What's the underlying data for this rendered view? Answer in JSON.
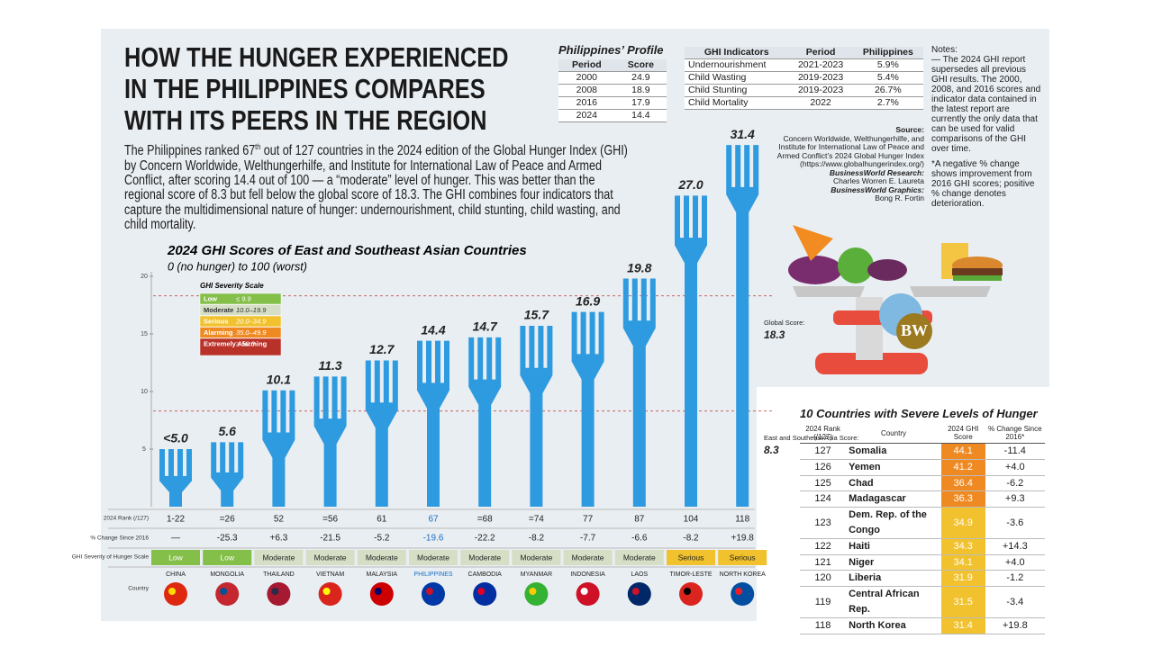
{
  "header": {
    "title_lines": [
      "HOW THE HUNGER EXPERIENCED",
      "IN THE PHILIPPINES COMPARES",
      "WITH ITS PEERS IN THE REGION"
    ],
    "intro": {
      "before": "The Philippines ranked 67",
      "sup": "th",
      "after": " out of 127 countries in the 2024 edition of the Global Hunger Index (GHI) by Concern Worldwide, Welthungerhilfe, and Institute for International Law of Peace and Armed Conflict, after scoring 14.4 out of 100 — a “moderate” level of hunger. This was better than the regional score of 8.3 but fell below the global score of 18.3. The GHI combines four indicators that capture the multidimensional nature of hunger: undernourishment, child stunting, child wasting, and child mortality."
    },
    "logo": "BW"
  },
  "profile": {
    "title": "Philippines’ Profile",
    "headers": [
      "Period",
      "Score"
    ],
    "rows": [
      [
        2000,
        24.9
      ],
      [
        2008,
        18.9
      ],
      [
        2016,
        17.9
      ],
      [
        2024,
        14.4
      ]
    ]
  },
  "indicators": {
    "headers": [
      "GHI Indicators",
      "Period",
      "Philippines"
    ],
    "rows": [
      [
        "Undernourishment",
        "2021-2023",
        "5.9%"
      ],
      [
        "Child Wasting",
        "2019-2023",
        "5.4%"
      ],
      [
        "Child Stunting",
        "2019-2023",
        "26.7%"
      ],
      [
        "Child Mortality",
        "2022",
        "2.7%"
      ]
    ]
  },
  "notes": {
    "title": "Notes:",
    "items": [
      "— The 2024 GHI report supersedes all previous GHI results. The 2000, 2008, and 2016 scores and indicator data contained in the latest report are currently the only data that can be used for valid comparisons of the GHI over time.",
      "*A negative % change shows improvement from 2016 GHI scores; positive % change denotes deterioration."
    ]
  },
  "source": {
    "label": "Source:",
    "text": "Concern Worldwide, Welthungerhilfe, and Institute for International Law of Peace and Armed Conflict’s 2024 Global Hunger Index (https://www.globalhungerindex.org/)",
    "research_label": "BusinessWorld Research:",
    "research": "Charles Worren E. Laureta",
    "graphics_label": "BusinessWorld Graphics:",
    "graphics": "Bong R. Fortin"
  },
  "chart_data": {
    "type": "bar",
    "title": "2024 GHI Scores of East and Southeast Asian Countries",
    "subtitle": "0 (no hunger) to 100 (worst)",
    "categories": [
      "CHINA",
      "MONGOLIA",
      "THAILAND",
      "VIETNAM",
      "MALAYSIA",
      "PHILIPPINES",
      "CAMBODIA",
      "MYANMAR",
      "INDONESIA",
      "LAOS",
      "TIMOR-LESTE",
      "NORTH KOREA"
    ],
    "values": [
      5.0,
      5.6,
      10.1,
      11.3,
      12.7,
      14.4,
      14.7,
      15.7,
      16.9,
      19.8,
      27.0,
      31.4
    ],
    "value_labels": [
      "<5.0",
      "5.6",
      "10.1",
      "11.3",
      "12.7",
      "14.4",
      "14.7",
      "15.7",
      "16.9",
      "19.8",
      "27.0",
      "31.4"
    ],
    "color": "#2e9be0",
    "ylim": [
      0,
      20
    ],
    "yticks": [
      5,
      10,
      15,
      20
    ],
    "highlight_index": 5,
    "reference_lines": [
      {
        "label": "Global Score:",
        "value": 18.3
      },
      {
        "label": "East and Southeast Asia Score:",
        "value": 8.3
      }
    ],
    "severity_scale": {
      "title": "GHI Severity Scale",
      "levels": [
        {
          "name": "Low",
          "range": "≤ 9.9",
          "color": "#84bf4a"
        },
        {
          "name": "Moderate",
          "range": "10.0–19.9",
          "color": "#d6dfc6"
        },
        {
          "name": "Serious",
          "range": "20.0–34.9",
          "color": "#f1c22d"
        },
        {
          "name": "Alarming",
          "range": "35.0–49.9",
          "color": "#ef8a23"
        },
        {
          "name": "Extremely Alarming",
          "range": "≥ 50.0",
          "color": "#b8322a"
        }
      ]
    },
    "rows": {
      "labels": [
        "2024 Rank (/127)",
        "% Change Since 2016",
        "GHI Severity of Hunger Scale",
        "Country"
      ],
      "rank": [
        "1-22",
        "=26",
        "52",
        "=56",
        "61",
        "67",
        "=68",
        "=74",
        "77",
        "87",
        "104",
        "118"
      ],
      "change": [
        "—",
        "-25.3",
        "+6.3",
        "-21.5",
        "-5.2",
        "-19.6",
        "-22.2",
        "-8.2",
        "-7.7",
        "-6.6",
        "-8.2",
        "+19.8"
      ],
      "severity": [
        "Low",
        "Low",
        "Moderate",
        "Moderate",
        "Moderate",
        "Moderate",
        "Moderate",
        "Moderate",
        "Moderate",
        "Moderate",
        "Serious",
        "Serious"
      ]
    }
  },
  "severe": {
    "title": "10 Countries with Severe Levels of Hunger",
    "headers": [
      "2024 Rank (/127)",
      "Country",
      "2024 GHI Score",
      "% Change Since 2016*"
    ],
    "rows": [
      {
        "rank": 127,
        "country": "Somalia",
        "score": 44.1,
        "change": "-11.4",
        "color": "#ef8a23"
      },
      {
        "rank": 126,
        "country": "Yemen",
        "score": 41.2,
        "change": "+4.0",
        "color": "#ef8a23"
      },
      {
        "rank": 125,
        "country": "Chad",
        "score": 36.4,
        "change": "-6.2",
        "color": "#ef8a23"
      },
      {
        "rank": 124,
        "country": "Madagascar",
        "score": 36.3,
        "change": "+9.3",
        "color": "#ef8a23"
      },
      {
        "rank": 123,
        "country": "Dem. Rep. of the Congo",
        "score": 34.9,
        "change": "-3.6",
        "color": "#f1c22d"
      },
      {
        "rank": 122,
        "country": "Haiti",
        "score": 34.3,
        "change": "+14.3",
        "color": "#f1c22d"
      },
      {
        "rank": 121,
        "country": "Niger",
        "score": 34.1,
        "change": "+4.0",
        "color": "#f1c22d"
      },
      {
        "rank": 120,
        "country": "Liberia",
        "score": 31.9,
        "change": "-1.2",
        "color": "#f1c22d"
      },
      {
        "rank": 119,
        "country": "Central African Rep.",
        "score": 31.5,
        "change": "-3.4",
        "color": "#f1c22d"
      },
      {
        "rank": 118,
        "country": "North Korea",
        "score": 31.4,
        "change": "+19.8",
        "color": "#f1c22d"
      }
    ]
  }
}
